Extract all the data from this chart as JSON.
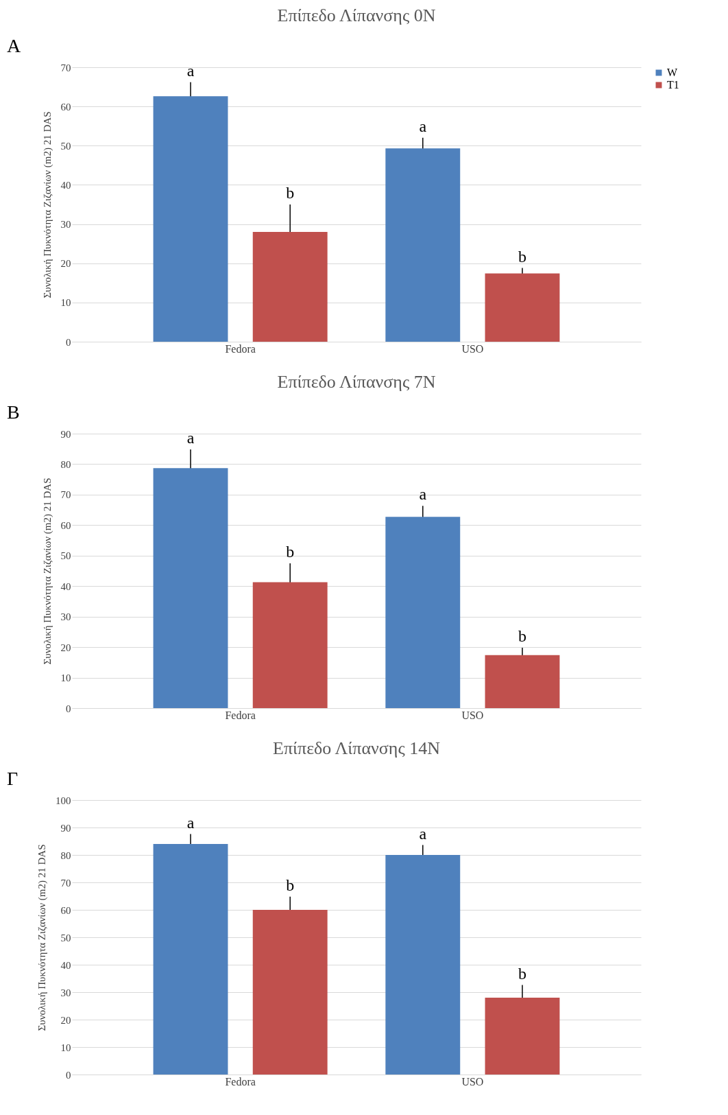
{
  "chart_data": [
    {
      "type": "bar",
      "title": "Επίπεδο Λίπανσης 0N",
      "ylabel": "Συνολική Πυκνότητα Ζιζανίων (m2) 21 DAS",
      "categories": [
        "Fedora",
        "USO"
      ],
      "series": [
        {
          "name": "W",
          "color": "#4f81bd",
          "values": [
            62.6,
            49.3
          ],
          "errors": [
            3.6,
            2.7
          ]
        },
        {
          "name": "T1",
          "color": "#c0504d",
          "values": [
            28,
            17.4
          ],
          "errors": [
            7,
            1.4
          ]
        }
      ],
      "ylim": [
        0,
        70
      ],
      "yticks": [
        0,
        10,
        20,
        30,
        40,
        50,
        60,
        70
      ],
      "grid": "y",
      "legend": "right",
      "annotations": [
        "A",
        "a",
        "b",
        "a",
        "b"
      ]
    },
    {
      "type": "bar",
      "title": "Επίπεδο Λίπανσης 7N",
      "ylabel": "Συνολική Πυκνότητα Ζιζανίων (m2) 21 DAS",
      "categories": [
        "Fedora",
        "USO"
      ],
      "series": [
        {
          "name": "W",
          "color": "#4f81bd",
          "values": [
            78.7,
            62.7
          ],
          "errors": [
            6.1,
            3.6
          ]
        },
        {
          "name": "T1",
          "color": "#c0504d",
          "values": [
            41.3,
            17.4
          ],
          "errors": [
            6.2,
            2.4
          ]
        }
      ],
      "ylim": [
        0,
        90
      ],
      "yticks": [
        0,
        10,
        20,
        30,
        40,
        50,
        60,
        70,
        80,
        90
      ],
      "grid": "y",
      "legend": "right",
      "annotations": [
        "B",
        "a",
        "b",
        "a",
        "b"
      ]
    },
    {
      "type": "bar",
      "title": "Επίπεδο Λίπανσης 14N",
      "ylabel": "Συνολική Πυκνότητα Ζιζανίων (m2) 21 DAS",
      "categories": [
        "Fedora",
        "USO"
      ],
      "series": [
        {
          "name": "W",
          "color": "#4f81bd",
          "values": [
            84,
            80
          ],
          "errors": [
            3.6,
            3.6
          ]
        },
        {
          "name": "T1",
          "color": "#c0504d",
          "values": [
            60,
            28
          ],
          "errors": [
            4.8,
            4.6
          ]
        }
      ],
      "ylim": [
        0,
        100
      ],
      "yticks": [
        0,
        10,
        20,
        30,
        40,
        50,
        60,
        70,
        80,
        90,
        100
      ],
      "grid": "y",
      "legend": "right",
      "annotations": [
        "Γ",
        "a",
        "b",
        "a",
        "b"
      ]
    }
  ]
}
